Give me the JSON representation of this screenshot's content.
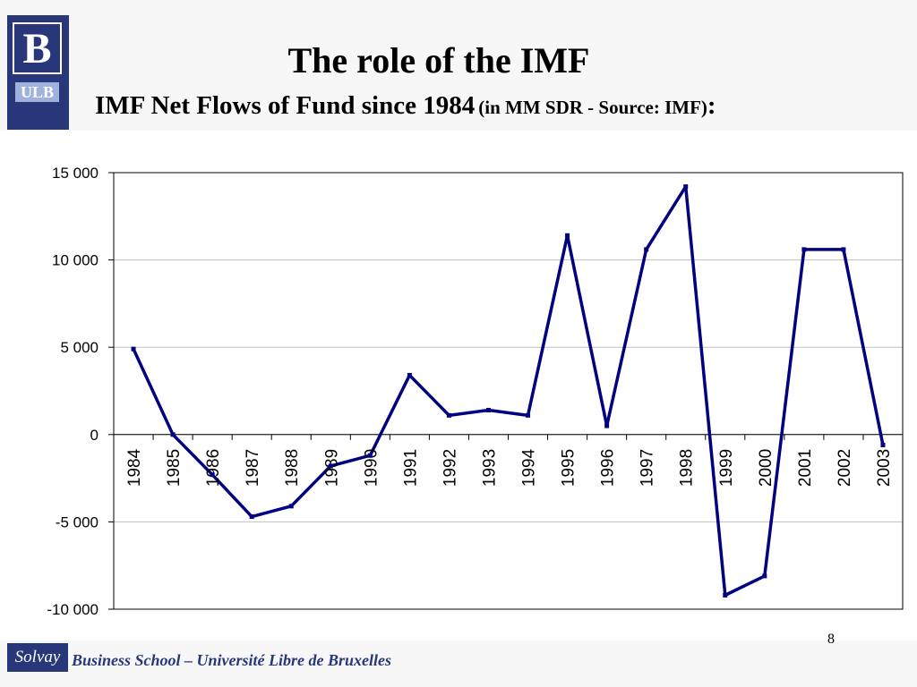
{
  "slide": {
    "title": "The role of the IMF",
    "subtitle_main": "IMF Net Flows of Fund since 1984",
    "subtitle_paren": "(in MM SDR - Source: IMF)",
    "subtitle_colon": ":",
    "page_number": "8"
  },
  "logo": {
    "letter": "B",
    "text": "ULB"
  },
  "footer": {
    "badge": "Solvay",
    "school": "Business School – Université Libre de Bruxelles"
  },
  "colors": {
    "line": "#000080",
    "brand": "#283779",
    "grid": "#bfbfbf"
  },
  "chart_data": {
    "type": "line",
    "title": "",
    "xlabel": "",
    "ylabel": "",
    "ylim": [
      -10000,
      15000
    ],
    "yticks": [
      15000,
      10000,
      5000,
      0,
      -5000,
      -10000
    ],
    "ytick_labels": [
      "15 000",
      "10 000",
      "5 000",
      "0",
      "-5 000",
      "-10 000"
    ],
    "grid": true,
    "legend": "none",
    "categories": [
      "1984",
      "1985",
      "1986",
      "1987",
      "1988",
      "1989",
      "1990",
      "1991",
      "1992",
      "1993",
      "1994",
      "1995",
      "1996",
      "1997",
      "1998",
      "1999",
      "2000",
      "2001",
      "2002",
      "2003"
    ],
    "series": [
      {
        "values": [
          4900,
          0,
          -2300,
          -4700,
          -4100,
          -1800,
          -1200,
          3400,
          1100,
          1400,
          1100,
          11400,
          500,
          10600,
          14200,
          -9200,
          -8100,
          10600,
          10600,
          -600
        ]
      }
    ]
  }
}
